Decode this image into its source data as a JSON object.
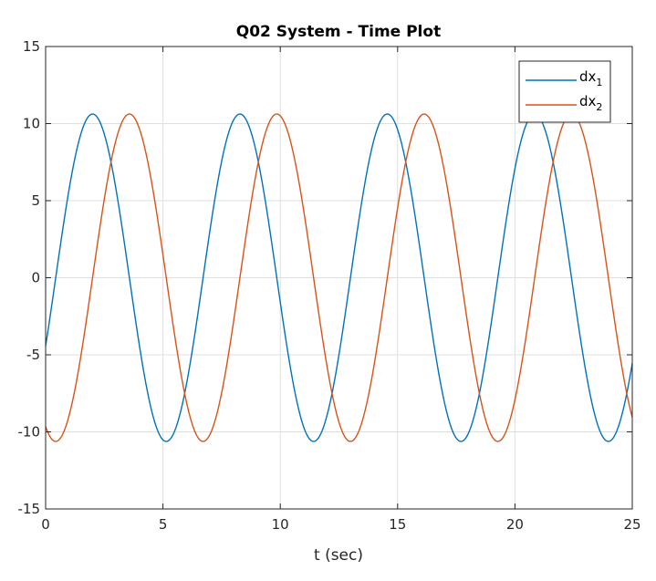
{
  "chart_data": {
    "type": "line",
    "title": "Q02 System - Time Plot",
    "xlabel": "t (sec)",
    "ylabel": "",
    "xlim": [
      0,
      25
    ],
    "ylim": [
      -15,
      15
    ],
    "xticks": [
      0,
      5,
      10,
      15,
      20,
      25
    ],
    "yticks": [
      -15,
      -10,
      -5,
      0,
      5,
      10,
      15
    ],
    "grid": true,
    "legend_position": "top-right",
    "series": [
      {
        "name_base": "dx",
        "name_sub": "1",
        "color": "#0072BD",
        "amplitude": 10.62,
        "period": 6.28,
        "phase_t0": -4.35,
        "t_peak_first": 2.0
      },
      {
        "name_base": "dx",
        "name_sub": "2",
        "color": "#D95319",
        "amplitude": 10.62,
        "period": 6.28,
        "phase_t0": -9.65,
        "t_peak_first": 3.57
      }
    ]
  }
}
